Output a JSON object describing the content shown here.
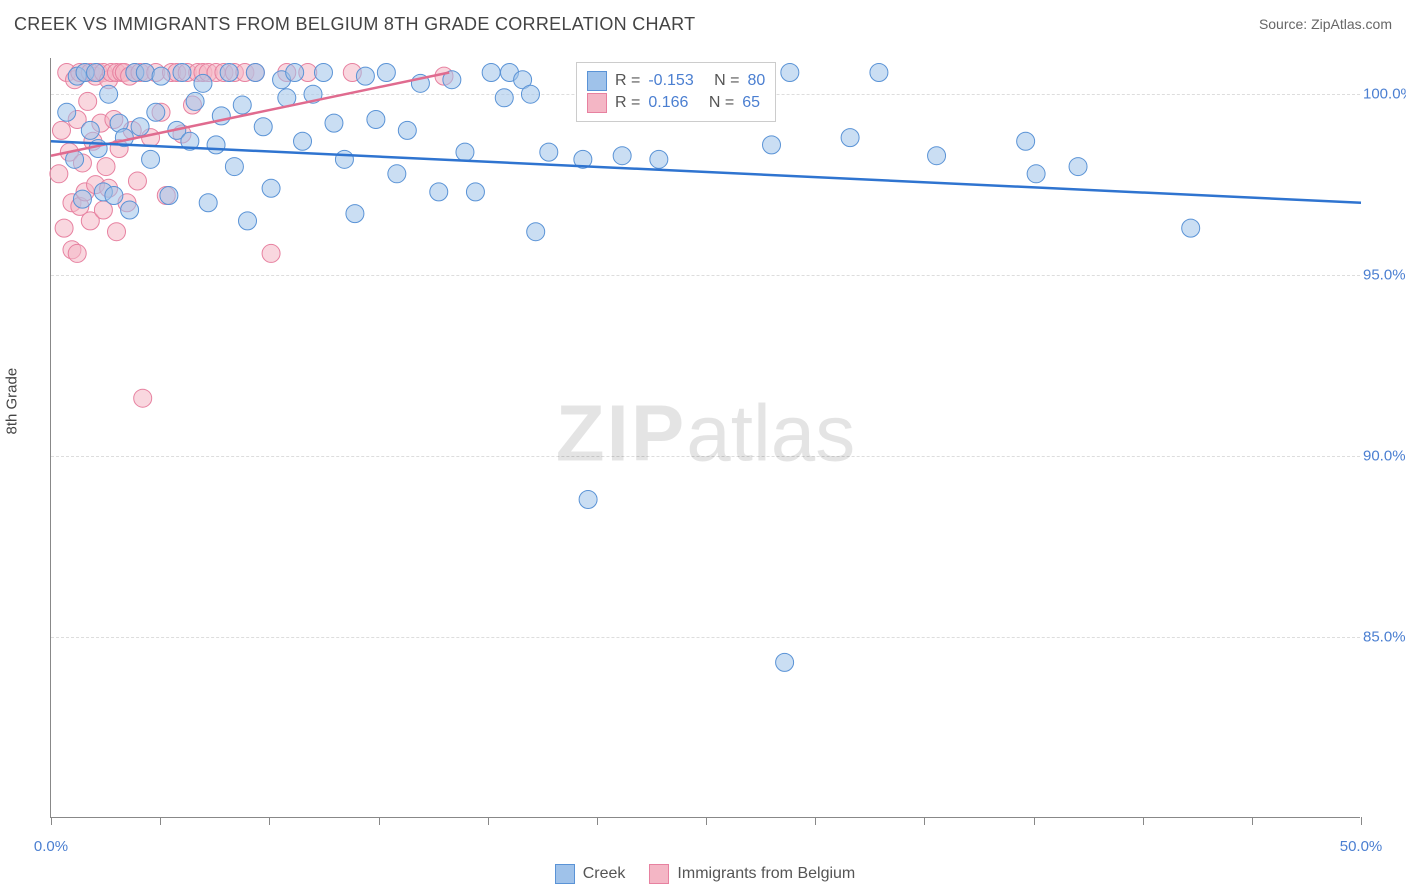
{
  "header": {
    "title": "CREEK VS IMMIGRANTS FROM BELGIUM 8TH GRADE CORRELATION CHART",
    "source_prefix": "Source: ",
    "source_name": "ZipAtlas.com"
  },
  "watermark": {
    "bold": "ZIP",
    "thin": "atlas"
  },
  "axes": {
    "ylabel": "8th Grade",
    "ylabel_fontsize": 15,
    "xlim": [
      0,
      50
    ],
    "ylim": [
      80,
      101
    ],
    "xticks": [
      0,
      4.17,
      8.33,
      12.5,
      16.67,
      20.83,
      25,
      29.17,
      33.33,
      37.5,
      41.67,
      45.83,
      50
    ],
    "xtick_labels": {
      "0": "0.0%",
      "50": "50.0%"
    },
    "yticks": [
      85,
      90,
      95,
      100
    ],
    "ytick_labels": {
      "85": "85.0%",
      "90": "90.0%",
      "95": "95.0%",
      "100": "100.0%"
    },
    "axis_label_color": "#4b7fd1",
    "grid_color": "#dddddd",
    "axis_color": "#888888"
  },
  "series": {
    "creek": {
      "label": "Creek",
      "fill_color": "#9fc2ea",
      "stroke_color": "#5a93d6",
      "fill_opacity": 0.55,
      "line_color": "#2f74d0",
      "line_width": 2.5,
      "marker_radius": 9,
      "R": "-0.153",
      "N": "80",
      "trend": {
        "type": "linear",
        "x0": 0,
        "y0": 98.7,
        "x1": 50,
        "y1": 97.0
      },
      "points": [
        [
          0.6,
          99.5
        ],
        [
          0.9,
          98.2
        ],
        [
          1.0,
          100.5
        ],
        [
          1.2,
          97.1
        ],
        [
          1.3,
          100.6
        ],
        [
          1.5,
          99.0
        ],
        [
          1.7,
          100.6
        ],
        [
          1.8,
          98.5
        ],
        [
          2.0,
          97.3
        ],
        [
          2.2,
          100.0
        ],
        [
          2.4,
          97.2
        ],
        [
          2.6,
          99.2
        ],
        [
          2.8,
          98.8
        ],
        [
          3.0,
          96.8
        ],
        [
          3.2,
          100.6
        ],
        [
          3.4,
          99.1
        ],
        [
          3.6,
          100.6
        ],
        [
          3.8,
          98.2
        ],
        [
          4.0,
          99.5
        ],
        [
          4.2,
          100.5
        ],
        [
          4.5,
          97.2
        ],
        [
          4.8,
          99.0
        ],
        [
          5.0,
          100.6
        ],
        [
          5.3,
          98.7
        ],
        [
          5.5,
          99.8
        ],
        [
          5.8,
          100.3
        ],
        [
          6.0,
          97.0
        ],
        [
          6.3,
          98.6
        ],
        [
          6.5,
          99.4
        ],
        [
          6.8,
          100.6
        ],
        [
          7.0,
          98.0
        ],
        [
          7.3,
          99.7
        ],
        [
          7.5,
          96.5
        ],
        [
          7.8,
          100.6
        ],
        [
          8.1,
          99.1
        ],
        [
          8.4,
          97.4
        ],
        [
          8.8,
          100.4
        ],
        [
          9.0,
          99.9
        ],
        [
          9.3,
          100.6
        ],
        [
          9.6,
          98.7
        ],
        [
          10.0,
          100.0
        ],
        [
          10.4,
          100.6
        ],
        [
          10.8,
          99.2
        ],
        [
          11.2,
          98.2
        ],
        [
          11.6,
          96.7
        ],
        [
          12.0,
          100.5
        ],
        [
          12.4,
          99.3
        ],
        [
          12.8,
          100.6
        ],
        [
          13.2,
          97.8
        ],
        [
          13.6,
          99.0
        ],
        [
          14.1,
          100.3
        ],
        [
          14.8,
          97.3
        ],
        [
          15.3,
          100.4
        ],
        [
          15.8,
          98.4
        ],
        [
          16.2,
          97.3
        ],
        [
          16.8,
          100.6
        ],
        [
          17.3,
          99.9
        ],
        [
          17.5,
          100.6
        ],
        [
          18.0,
          100.4
        ],
        [
          18.3,
          100.0
        ],
        [
          18.5,
          96.2
        ],
        [
          19.0,
          98.4
        ],
        [
          20.3,
          98.2
        ],
        [
          20.5,
          88.8
        ],
        [
          21.2,
          100.0
        ],
        [
          21.8,
          98.3
        ],
        [
          23.2,
          98.2
        ],
        [
          25.0,
          100.6
        ],
        [
          25.3,
          100.6
        ],
        [
          26.2,
          100.6
        ],
        [
          27.5,
          98.6
        ],
        [
          28.0,
          84.3
        ],
        [
          28.2,
          100.6
        ],
        [
          30.5,
          98.8
        ],
        [
          31.6,
          100.6
        ],
        [
          33.8,
          98.3
        ],
        [
          37.2,
          98.7
        ],
        [
          37.6,
          97.8
        ],
        [
          39.2,
          98.0
        ],
        [
          43.5,
          96.3
        ]
      ]
    },
    "belgium": {
      "label": "Immigrants from Belgium",
      "fill_color": "#f4b6c5",
      "stroke_color": "#e781a0",
      "fill_opacity": 0.55,
      "line_color": "#e06b8f",
      "line_width": 2.5,
      "marker_radius": 9,
      "R": "0.166",
      "N": "65",
      "trend": {
        "type": "linear",
        "x0": 0,
        "y0": 98.3,
        "x1": 15.2,
        "y1": 100.6
      },
      "points": [
        [
          0.3,
          97.8
        ],
        [
          0.4,
          99.0
        ],
        [
          0.5,
          96.3
        ],
        [
          0.6,
          100.6
        ],
        [
          0.7,
          98.4
        ],
        [
          0.8,
          95.7
        ],
        [
          0.8,
          97.0
        ],
        [
          0.9,
          100.4
        ],
        [
          1.0,
          95.6
        ],
        [
          1.0,
          99.3
        ],
        [
          1.1,
          96.9
        ],
        [
          1.1,
          100.6
        ],
        [
          1.2,
          98.1
        ],
        [
          1.3,
          100.6
        ],
        [
          1.3,
          97.3
        ],
        [
          1.4,
          99.8
        ],
        [
          1.5,
          100.6
        ],
        [
          1.5,
          96.5
        ],
        [
          1.6,
          98.7
        ],
        [
          1.7,
          100.5
        ],
        [
          1.7,
          97.5
        ],
        [
          1.8,
          100.6
        ],
        [
          1.9,
          99.2
        ],
        [
          2.0,
          100.6
        ],
        [
          2.0,
          96.8
        ],
        [
          2.1,
          98.0
        ],
        [
          2.2,
          100.4
        ],
        [
          2.2,
          97.4
        ],
        [
          2.3,
          100.6
        ],
        [
          2.4,
          99.3
        ],
        [
          2.5,
          100.6
        ],
        [
          2.5,
          96.2
        ],
        [
          2.6,
          98.5
        ],
        [
          2.7,
          100.6
        ],
        [
          2.8,
          100.6
        ],
        [
          2.9,
          97.0
        ],
        [
          3.0,
          100.5
        ],
        [
          3.1,
          99.0
        ],
        [
          3.2,
          100.6
        ],
        [
          3.3,
          97.6
        ],
        [
          3.4,
          100.6
        ],
        [
          3.5,
          91.6
        ],
        [
          3.6,
          100.6
        ],
        [
          3.8,
          98.8
        ],
        [
          4.0,
          100.6
        ],
        [
          4.2,
          99.5
        ],
        [
          4.4,
          97.2
        ],
        [
          4.6,
          100.6
        ],
        [
          4.8,
          100.6
        ],
        [
          5.0,
          98.9
        ],
        [
          5.2,
          100.6
        ],
        [
          5.4,
          99.7
        ],
        [
          5.6,
          100.6
        ],
        [
          5.8,
          100.6
        ],
        [
          6.0,
          100.6
        ],
        [
          6.3,
          100.6
        ],
        [
          6.6,
          100.6
        ],
        [
          7.0,
          100.6
        ],
        [
          7.4,
          100.6
        ],
        [
          7.8,
          100.6
        ],
        [
          8.4,
          95.6
        ],
        [
          9.0,
          100.6
        ],
        [
          9.8,
          100.6
        ],
        [
          11.5,
          100.6
        ],
        [
          15.0,
          100.5
        ]
      ]
    }
  },
  "legend_stats": {
    "r_label": "R =",
    "n_label": "N ="
  },
  "colors": {
    "background": "#ffffff",
    "text": "#444444"
  }
}
